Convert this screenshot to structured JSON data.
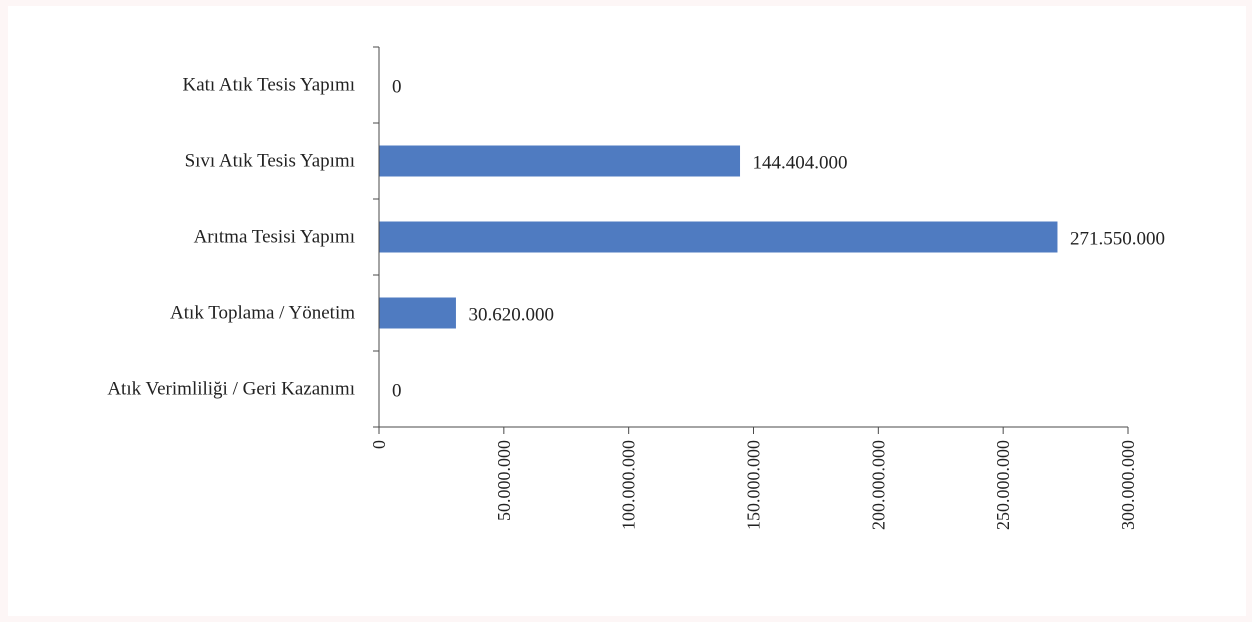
{
  "chart_data": {
    "type": "bar",
    "orientation": "horizontal",
    "categories": [
      "Katı Atık Tesis Yapımı",
      "Sıvı Atık Tesis Yapımı",
      "Arıtma Tesisi Yapımı",
      "Atık Toplama / Yönetim",
      "Atık Verimliliği / Geri Kazanımı"
    ],
    "values": [
      0,
      144404000,
      271550000,
      30620000,
      0
    ],
    "value_labels": [
      "0",
      "144.404.000",
      "271.550.000",
      "30.620.000",
      "0"
    ],
    "xlim": [
      0,
      300000000
    ],
    "x_ticks": [
      0,
      50000000,
      100000000,
      150000000,
      200000000,
      250000000,
      300000000
    ],
    "x_tick_labels": [
      "0",
      "50.000.000",
      "100.000.000",
      "150.000.000",
      "200.000.000",
      "250.000.000",
      "300.000.000"
    ],
    "bar_color": "#4f7bc1",
    "title": "",
    "xlabel": "",
    "ylabel": "",
    "grid": false,
    "legend": "none"
  }
}
